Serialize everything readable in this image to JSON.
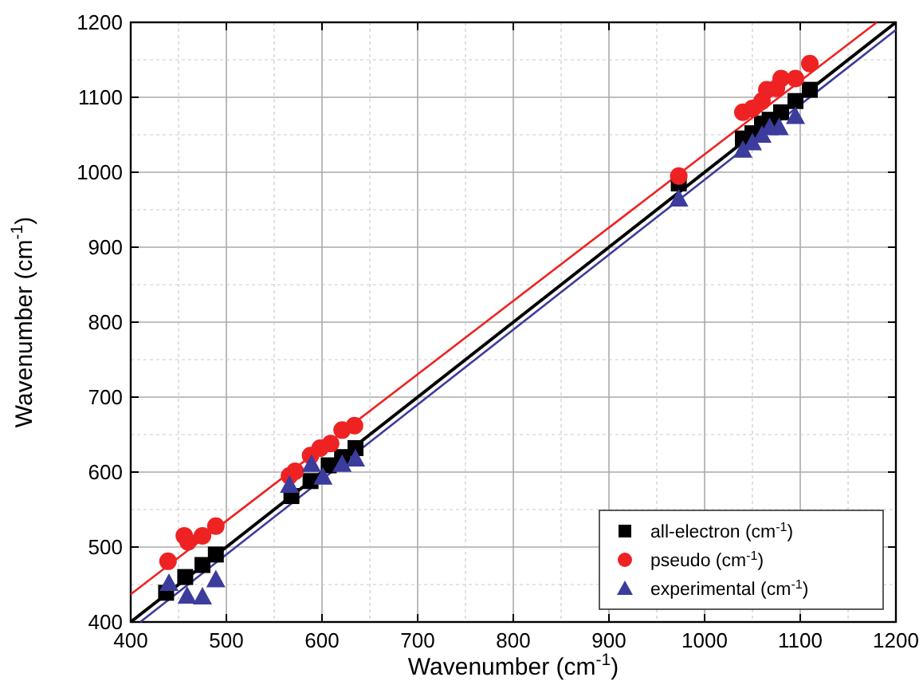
{
  "chart_data": {
    "type": "scatter",
    "xlabel": "Wavenumber (cm$^{-1}$)",
    "ylabel": "Wavenumber (cm$^{-1}$)",
    "xlim": [
      400,
      1200
    ],
    "ylim": [
      400,
      1200
    ],
    "xticks": [
      400,
      500,
      600,
      700,
      800,
      900,
      1000,
      1100,
      1200
    ],
    "yticks": [
      400,
      500,
      600,
      700,
      800,
      900,
      1000,
      1100,
      1200
    ],
    "grid": true,
    "legend": "bottom right",
    "series": [
      {
        "name": "all-electron (cm$^{-1}$)",
        "color": "#000000",
        "marker": "square",
        "x": [
          437,
          457,
          475,
          489,
          568,
          588,
          607,
          621,
          635,
          973,
          1040,
          1050,
          1060,
          1068,
          1080,
          1095,
          1110
        ],
        "values": [
          439,
          460,
          476,
          490,
          568,
          588,
          609,
          620,
          632,
          985,
          1045,
          1052,
          1065,
          1070,
          1080,
          1095,
          1110
        ]
      },
      {
        "name": "pseudo (cm$^{-1}$)",
        "color": "#ee2222",
        "marker": "circle",
        "x": [
          439,
          456,
          460,
          475,
          489,
          566,
          572,
          588,
          598,
          609,
          621,
          634,
          973,
          1040,
          1050,
          1060,
          1065,
          1075,
          1080,
          1095,
          1110
        ],
        "values": [
          481,
          515,
          507,
          515,
          528,
          595,
          601,
          622,
          632,
          638,
          656,
          662,
          995,
          1080,
          1085,
          1095,
          1110,
          1112,
          1125,
          1125,
          1145
        ]
      },
      {
        "name": "experimental (cm$^{-1}$)",
        "color": "#3c3c9c",
        "marker": "triangle",
        "x": [
          440,
          459,
          475,
          489,
          566,
          589,
          601,
          621,
          635,
          973,
          1040,
          1050,
          1060,
          1068,
          1078,
          1095
        ],
        "values": [
          452,
          435,
          434,
          457,
          583,
          611,
          594,
          611,
          618,
          965,
          1030,
          1040,
          1050,
          1060,
          1060,
          1075
        ]
      },
      {
        "type": "line",
        "color": "#000000",
        "x": [
          400,
          1200
        ],
        "values": [
          400,
          1200
        ]
      },
      {
        "type": "line",
        "color": "#ee2222",
        "x": [
          400,
          1180
        ],
        "values": [
          437,
          1200
        ]
      },
      {
        "type": "line",
        "color": "#3c3c9c",
        "x": [
          410,
          1200
        ],
        "values": [
          400,
          1190
        ]
      }
    ]
  }
}
